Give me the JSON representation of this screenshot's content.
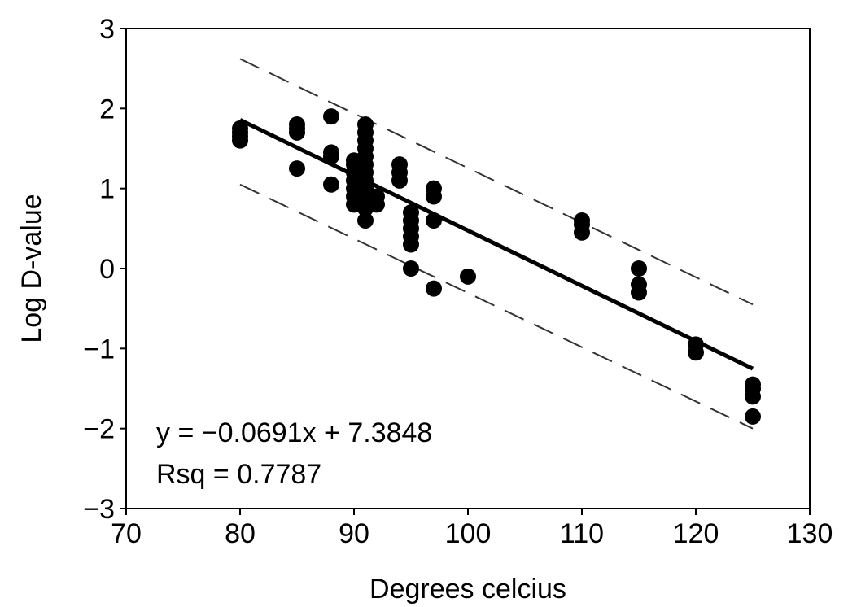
{
  "chart_data": {
    "type": "scatter",
    "title": "",
    "xlabel": "Degrees celcius",
    "ylabel": "Log D-value",
    "xlim": [
      70,
      130
    ],
    "ylim": [
      -3,
      3
    ],
    "x_ticks": [
      70,
      80,
      90,
      100,
      110,
      120,
      130
    ],
    "x_tick_labels": [
      "70",
      "80",
      "90",
      "100",
      "110",
      "120",
      "130"
    ],
    "y_ticks": [
      -3,
      -2,
      -1,
      0,
      1,
      2,
      3
    ],
    "y_tick_labels": [
      "−3",
      "−2",
      "−1",
      "0",
      "1",
      "2",
      "3"
    ],
    "grid": false,
    "colors": {
      "points": "#000000",
      "line": "#000000",
      "band": "#333333"
    },
    "points": [
      {
        "x": 80,
        "y": 1.6
      },
      {
        "x": 80,
        "y": 1.65
      },
      {
        "x": 80,
        "y": 1.7
      },
      {
        "x": 80,
        "y": 1.75
      },
      {
        "x": 85,
        "y": 1.25
      },
      {
        "x": 85,
        "y": 1.7
      },
      {
        "x": 85,
        "y": 1.75
      },
      {
        "x": 85,
        "y": 1.8
      },
      {
        "x": 88,
        "y": 1.05
      },
      {
        "x": 88,
        "y": 1.4
      },
      {
        "x": 88,
        "y": 1.45
      },
      {
        "x": 88,
        "y": 1.9
      },
      {
        "x": 90,
        "y": 0.8
      },
      {
        "x": 90,
        "y": 0.9
      },
      {
        "x": 90,
        "y": 1.0
      },
      {
        "x": 90,
        "y": 1.1
      },
      {
        "x": 90,
        "y": 1.2
      },
      {
        "x": 90,
        "y": 1.3
      },
      {
        "x": 90,
        "y": 1.35
      },
      {
        "x": 91,
        "y": 0.6
      },
      {
        "x": 91,
        "y": 0.75
      },
      {
        "x": 91,
        "y": 0.85
      },
      {
        "x": 91,
        "y": 1.0
      },
      {
        "x": 91,
        "y": 1.1
      },
      {
        "x": 91,
        "y": 1.2
      },
      {
        "x": 91,
        "y": 1.3
      },
      {
        "x": 91,
        "y": 1.4
      },
      {
        "x": 91,
        "y": 1.5
      },
      {
        "x": 91,
        "y": 1.6
      },
      {
        "x": 91,
        "y": 1.7
      },
      {
        "x": 91,
        "y": 1.8
      },
      {
        "x": 92,
        "y": 0.8
      },
      {
        "x": 92,
        "y": 0.9
      },
      {
        "x": 94,
        "y": 1.1
      },
      {
        "x": 94,
        "y": 1.2
      },
      {
        "x": 94,
        "y": 1.3
      },
      {
        "x": 95,
        "y": 0.0
      },
      {
        "x": 95,
        "y": 0.3
      },
      {
        "x": 95,
        "y": 0.4
      },
      {
        "x": 95,
        "y": 0.5
      },
      {
        "x": 95,
        "y": 0.6
      },
      {
        "x": 95,
        "y": 0.7
      },
      {
        "x": 97,
        "y": -0.25
      },
      {
        "x": 97,
        "y": 0.6
      },
      {
        "x": 97,
        "y": 0.9
      },
      {
        "x": 97,
        "y": 1.0
      },
      {
        "x": 100,
        "y": -0.1
      },
      {
        "x": 110,
        "y": 0.45
      },
      {
        "x": 110,
        "y": 0.55
      },
      {
        "x": 110,
        "y": 0.6
      },
      {
        "x": 115,
        "y": -0.3
      },
      {
        "x": 115,
        "y": -0.2
      },
      {
        "x": 115,
        "y": 0.0
      },
      {
        "x": 120,
        "y": -1.05
      },
      {
        "x": 120,
        "y": -0.95
      },
      {
        "x": 125,
        "y": -1.85
      },
      {
        "x": 125,
        "y": -1.6
      },
      {
        "x": 125,
        "y": -1.5
      },
      {
        "x": 125,
        "y": -1.45
      }
    ],
    "regression": {
      "slope": -0.0691,
      "intercept": 7.3848,
      "x_range": [
        80,
        125
      ]
    },
    "prediction_band": {
      "upper": [
        {
          "x": 80,
          "y": 2.62
        },
        {
          "x": 125,
          "y": -0.45
        }
      ],
      "lower": [
        {
          "x": 80,
          "y": 1.05
        },
        {
          "x": 125,
          "y": -2.0
        }
      ]
    },
    "annotations": [
      "y = −0.0691x + 7.3848",
      "Rsq = 0.7787"
    ]
  }
}
